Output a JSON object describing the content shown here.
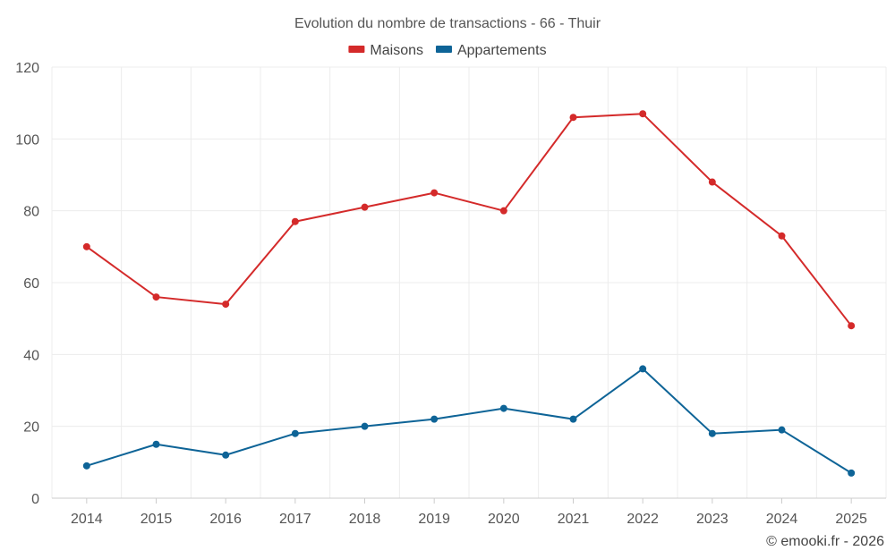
{
  "chart_data": {
    "type": "line",
    "title": "Evolution du nombre de transactions - 66 - Thuir",
    "categories": [
      "2014",
      "2015",
      "2016",
      "2017",
      "2018",
      "2019",
      "2020",
      "2021",
      "2022",
      "2023",
      "2024",
      "2025"
    ],
    "series": [
      {
        "name": "Maisons",
        "color": "#d42a2a",
        "values": [
          70,
          56,
          54,
          77,
          81,
          85,
          80,
          106,
          107,
          88,
          73,
          48
        ]
      },
      {
        "name": "Appartements",
        "color": "#0e6497",
        "values": [
          9,
          15,
          12,
          18,
          20,
          22,
          25,
          22,
          36,
          18,
          19,
          7
        ]
      }
    ],
    "ylim": [
      0,
      120
    ],
    "yticks": [
      0,
      20,
      40,
      60,
      80,
      100,
      120
    ],
    "legend_position": "top-center",
    "grid": true
  },
  "credit": "© emooki.fr - 2026"
}
